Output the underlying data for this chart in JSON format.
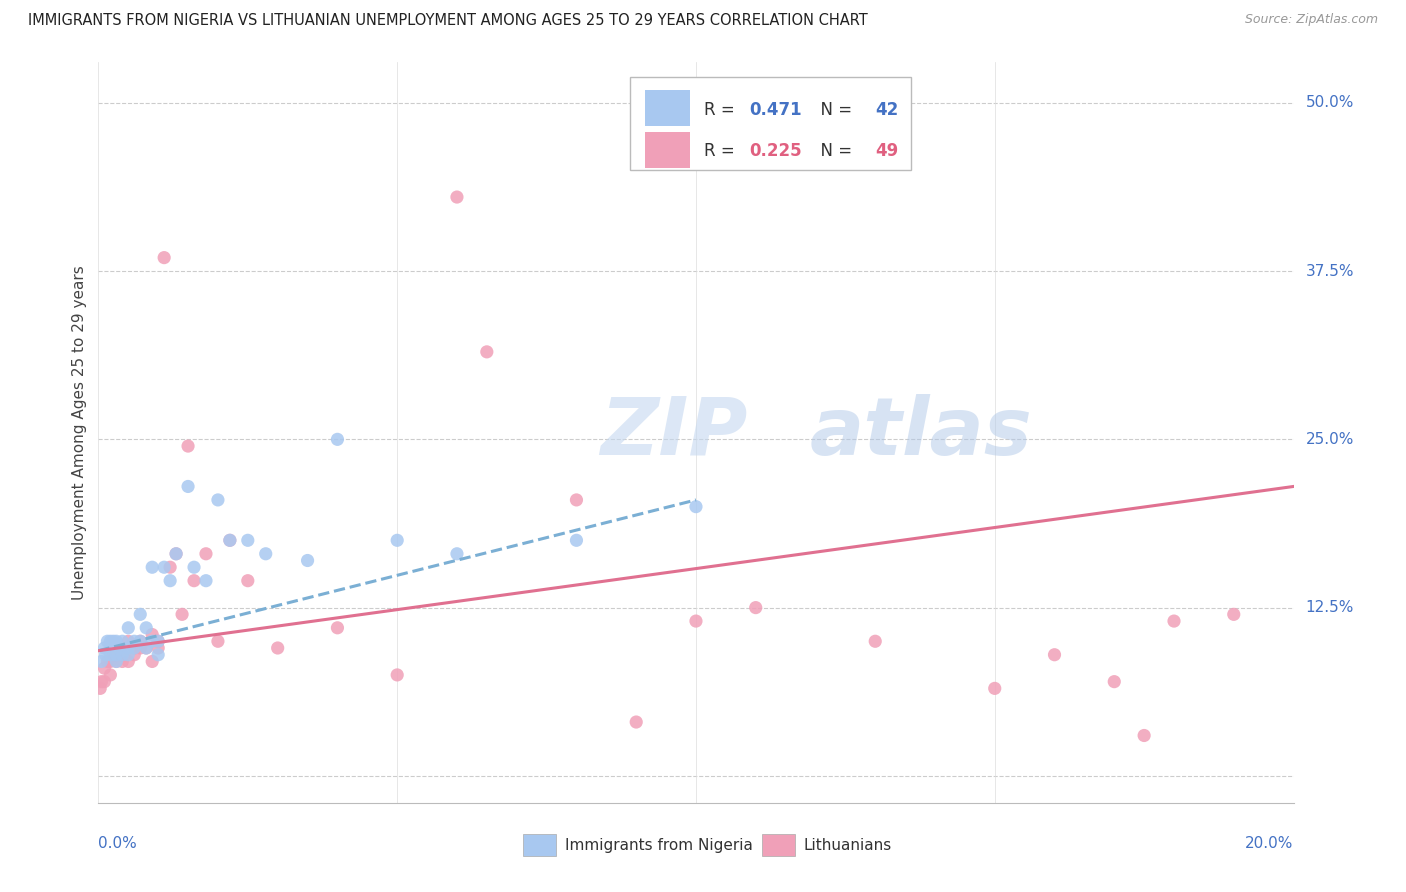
{
  "title": "IMMIGRANTS FROM NIGERIA VS LITHUANIAN UNEMPLOYMENT AMONG AGES 25 TO 29 YEARS CORRELATION CHART",
  "source": "Source: ZipAtlas.com",
  "ylabel": "Unemployment Among Ages 25 to 29 years",
  "color_nigeria": "#a8c8f0",
  "color_lithuania": "#f0a0b8",
  "color_nigeria_line": "#7bafd4",
  "color_lithuania_line": "#e07090",
  "watermark_zip": "ZIP",
  "watermark_atlas": "atlas",
  "xlim": [
    0.0,
    0.2
  ],
  "ylim": [
    -0.02,
    0.53
  ],
  "nigeria_r": "0.471",
  "nigeria_n": "42",
  "lithuania_r": "0.225",
  "lithuania_n": "49",
  "nigeria_scatter_x": [
    0.0005,
    0.001,
    0.0012,
    0.0015,
    0.002,
    0.002,
    0.0025,
    0.003,
    0.003,
    0.003,
    0.0035,
    0.004,
    0.004,
    0.005,
    0.005,
    0.005,
    0.006,
    0.006,
    0.007,
    0.007,
    0.008,
    0.008,
    0.009,
    0.009,
    0.01,
    0.01,
    0.011,
    0.012,
    0.013,
    0.015,
    0.016,
    0.018,
    0.02,
    0.022,
    0.025,
    0.028,
    0.035,
    0.04,
    0.05,
    0.06,
    0.08,
    0.1
  ],
  "nigeria_scatter_y": [
    0.085,
    0.095,
    0.09,
    0.1,
    0.09,
    0.1,
    0.1,
    0.085,
    0.09,
    0.1,
    0.095,
    0.09,
    0.1,
    0.09,
    0.095,
    0.11,
    0.1,
    0.095,
    0.1,
    0.12,
    0.095,
    0.11,
    0.1,
    0.155,
    0.09,
    0.1,
    0.155,
    0.145,
    0.165,
    0.215,
    0.155,
    0.145,
    0.205,
    0.175,
    0.175,
    0.165,
    0.16,
    0.25,
    0.175,
    0.165,
    0.175,
    0.2
  ],
  "lithuania_scatter_x": [
    0.0003,
    0.0005,
    0.001,
    0.001,
    0.0015,
    0.002,
    0.002,
    0.0025,
    0.003,
    0.003,
    0.004,
    0.004,
    0.005,
    0.005,
    0.006,
    0.006,
    0.007,
    0.007,
    0.008,
    0.009,
    0.009,
    0.01,
    0.01,
    0.011,
    0.012,
    0.013,
    0.014,
    0.015,
    0.016,
    0.018,
    0.02,
    0.022,
    0.025,
    0.03,
    0.04,
    0.05,
    0.06,
    0.065,
    0.08,
    0.09,
    0.1,
    0.11,
    0.13,
    0.15,
    0.16,
    0.17,
    0.175,
    0.18,
    0.19
  ],
  "lithuania_scatter_y": [
    0.065,
    0.07,
    0.08,
    0.07,
    0.085,
    0.075,
    0.085,
    0.09,
    0.085,
    0.09,
    0.085,
    0.09,
    0.1,
    0.085,
    0.095,
    0.09,
    0.095,
    0.1,
    0.095,
    0.085,
    0.105,
    0.1,
    0.095,
    0.385,
    0.155,
    0.165,
    0.12,
    0.245,
    0.145,
    0.165,
    0.1,
    0.175,
    0.145,
    0.095,
    0.11,
    0.075,
    0.43,
    0.315,
    0.205,
    0.04,
    0.115,
    0.125,
    0.1,
    0.065,
    0.09,
    0.07,
    0.03,
    0.115,
    0.12
  ],
  "nigeria_line_x": [
    0.0,
    0.1
  ],
  "nigeria_line_y": [
    0.093,
    0.205
  ],
  "lithuania_line_x": [
    0.0,
    0.2
  ],
  "lithuania_line_y": [
    0.093,
    0.215
  ],
  "xtick_positions": [
    0.0,
    0.05,
    0.1,
    0.15,
    0.2
  ],
  "ytick_positions": [
    0.0,
    0.125,
    0.25,
    0.375,
    0.5
  ],
  "ytick_labels": [
    "",
    "12.5%",
    "25.0%",
    "37.5%",
    "50.0%"
  ]
}
